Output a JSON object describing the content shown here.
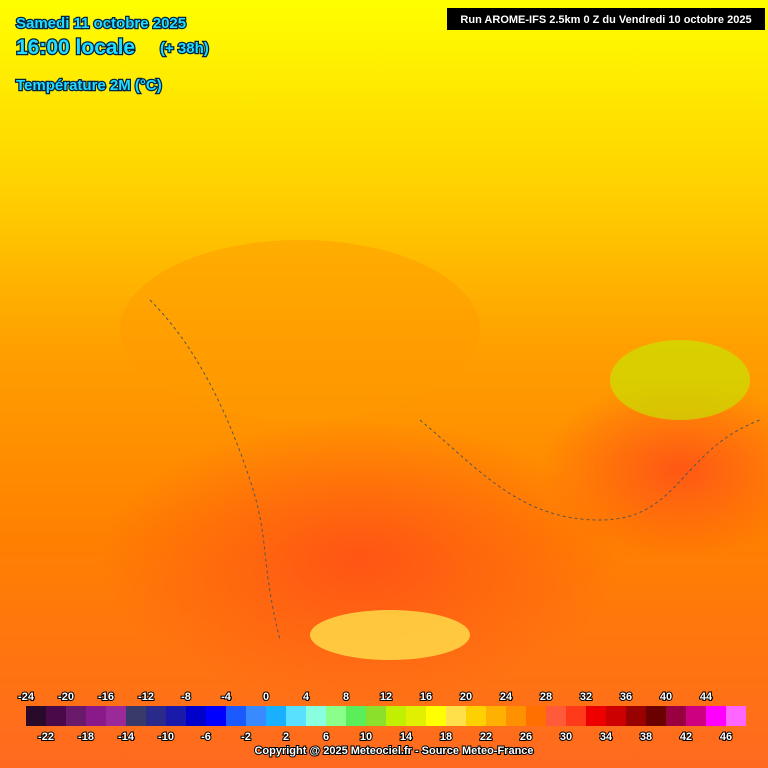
{
  "header": {
    "date": "Samedi 11 octobre 2025",
    "time": "16:00 locale",
    "lead": "(+ 38h)",
    "parameter": "Température 2M (°C)"
  },
  "run": "Run AROME-IFS 2.5km 0 Z du Vendredi 10 octobre 2025",
  "legend": {
    "upper_labels": [
      -24,
      -20,
      -16,
      -12,
      -8,
      -4,
      0,
      4,
      8,
      12,
      16,
      20,
      24,
      28,
      32,
      36,
      40,
      44
    ],
    "lower_labels": [
      -22,
      -18,
      -14,
      -10,
      -6,
      -2,
      2,
      6,
      10,
      14,
      18,
      22,
      26,
      30,
      34,
      38,
      42,
      46
    ],
    "colors": [
      "#2a0a2a",
      "#4a0a4a",
      "#6a1a6a",
      "#8a1a8a",
      "#9a2a9a",
      "#3a3a6a",
      "#2a2a8a",
      "#1a1aaa",
      "#0000cc",
      "#0000ff",
      "#1a5aff",
      "#3a8aff",
      "#1ab0ff",
      "#5ae0ff",
      "#8affe0",
      "#8aff8a",
      "#5aee5a",
      "#8ae02a",
      "#c0f000",
      "#e0f000",
      "#ffff00",
      "#ffe04a",
      "#ffd000",
      "#ffb000",
      "#ff9000",
      "#ff7000",
      "#ff5a3a",
      "#ff3a1a",
      "#ee0000",
      "#cc0000",
      "#990000",
      "#6a0000",
      "#990040",
      "#cc0080",
      "#ff00ff",
      "#ff66ff"
    ]
  },
  "footer": "Copyright @ 2025 Meteociel.fr - Source Meteo-France"
}
